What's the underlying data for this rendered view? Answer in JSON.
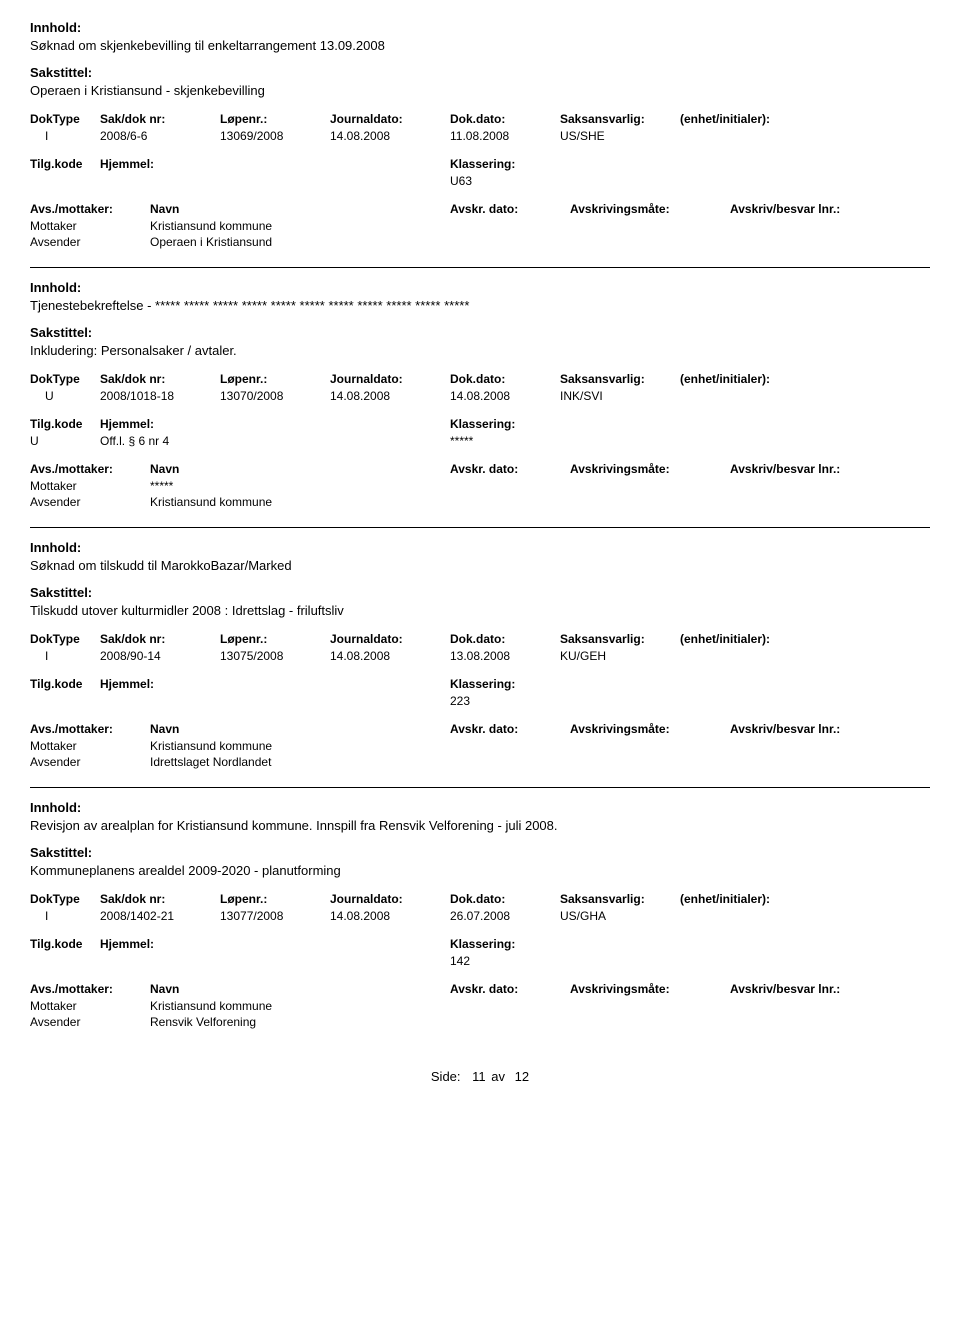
{
  "labels": {
    "innhold": "Innhold:",
    "sakstittel": "Sakstittel:",
    "doktype": "DokType",
    "sakdok": "Sak/dok nr:",
    "lopenr": "Løpenr.:",
    "journal": "Journaldato:",
    "dokdato": "Dok.dato:",
    "saksansvarlig": "Saksansvarlig:",
    "enhet": "(enhet/initialer):",
    "tilgkode": "Tilg.kode",
    "hjemmel": "Hjemmel:",
    "klassering": "Klassering:",
    "avsmottaker": "Avs./mottaker:",
    "navn": "Navn",
    "avskrdato": "Avskr. dato:",
    "avskrmate": "Avskrivingsmåte:",
    "avskrivbesvar": "Avskriv/besvar lnr.:"
  },
  "entries": [
    {
      "innhold": "Søknad om skjenkebevilling til enkeltarrangement 13.09.2008",
      "sakstittel": "Operaen i Kristiansund - skjenkebevilling",
      "doktype": "I",
      "sakdok": "2008/6-6",
      "lopenr": "13069/2008",
      "journal": "14.08.2008",
      "dokdato": "11.08.2008",
      "saksansvarlig": "US/SHE",
      "tilgkode": "",
      "hjemmel": "",
      "klassering": "U63",
      "parties": [
        {
          "role": "Mottaker",
          "navn": "Kristiansund kommune"
        },
        {
          "role": "Avsender",
          "navn": "Operaen i Kristiansund"
        }
      ]
    },
    {
      "innhold": "Tjenestebekreftelse - ***** ***** ***** ***** ***** ***** ***** ***** ***** ***** *****",
      "sakstittel": "Inkludering: Personalsaker / avtaler.",
      "doktype": "U",
      "sakdok": "2008/1018-18",
      "lopenr": "13070/2008",
      "journal": "14.08.2008",
      "dokdato": "14.08.2008",
      "saksansvarlig": "INK/SVI",
      "tilgkode": "U",
      "hjemmel": "Off.l. § 6 nr 4",
      "klassering": "*****",
      "parties": [
        {
          "role": "Mottaker",
          "navn": "*****"
        },
        {
          "role": "Avsender",
          "navn": "Kristiansund kommune"
        }
      ]
    },
    {
      "innhold": "Søknad om tilskudd til MarokkoBazar/Marked",
      "sakstittel": "Tilskudd utover kulturmidler 2008 : Idrettslag - friluftsliv",
      "doktype": "I",
      "sakdok": "2008/90-14",
      "lopenr": "13075/2008",
      "journal": "14.08.2008",
      "dokdato": "13.08.2008",
      "saksansvarlig": "KU/GEH",
      "tilgkode": "",
      "hjemmel": "",
      "klassering": "223",
      "parties": [
        {
          "role": "Mottaker",
          "navn": "Kristiansund kommune"
        },
        {
          "role": "Avsender",
          "navn": "Idrettslaget Nordlandet"
        }
      ]
    },
    {
      "innhold": "Revisjon av arealplan for Kristiansund kommune. Innspill fra Rensvik Velforening - juli 2008.",
      "sakstittel": "Kommuneplanens arealdel 2009-2020 - planutforming",
      "doktype": "I",
      "sakdok": "2008/1402-21",
      "lopenr": "13077/2008",
      "journal": "14.08.2008",
      "dokdato": "26.07.2008",
      "saksansvarlig": "US/GHA",
      "tilgkode": "",
      "hjemmel": "",
      "klassering": "142",
      "parties": [
        {
          "role": "Mottaker",
          "navn": "Kristiansund kommune"
        },
        {
          "role": "Avsender",
          "navn": "Rensvik Velforening"
        }
      ]
    }
  ],
  "footer": {
    "side": "Side:",
    "page": "11",
    "av": "av",
    "total": "12"
  }
}
